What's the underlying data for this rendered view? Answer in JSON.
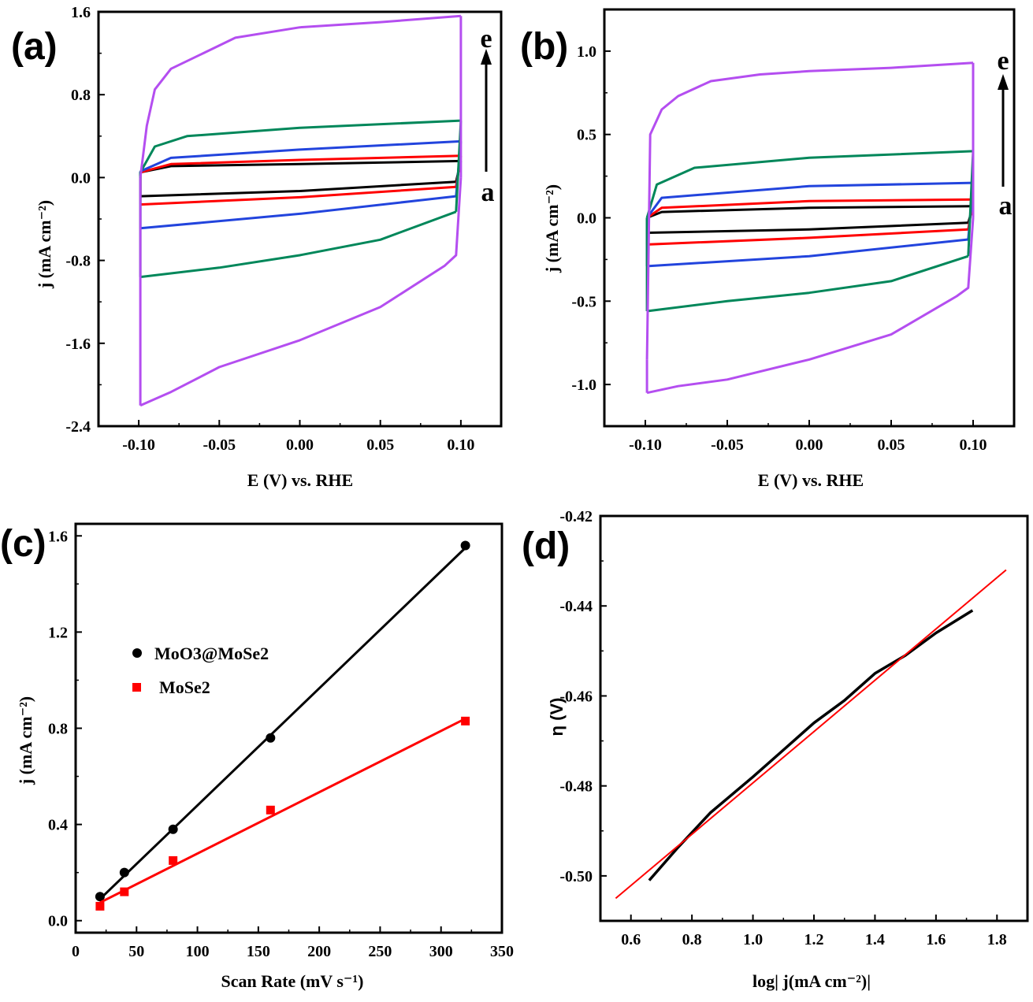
{
  "chart_data": [
    {
      "panel_label": "(a)",
      "type": "line",
      "xlabel": "E (V) vs. RHE",
      "ylabel": "j (mA cm⁻²)",
      "xlim": [
        -0.125,
        0.125
      ],
      "ylim": [
        -2.4,
        1.6
      ],
      "xticks": [
        "-0.10",
        "-0.05",
        "0.00",
        "0.05",
        "0.10"
      ],
      "yticks": [
        "-2.4",
        "-1.6",
        "-0.8",
        "0.0",
        "0.8",
        "1.6"
      ],
      "ytick_values": [
        -2.4,
        -1.6,
        -0.8,
        0.0,
        0.8,
        1.6
      ],
      "xtick_values": [
        -0.1,
        -0.05,
        0.0,
        0.05,
        0.1
      ],
      "annotations": {
        "top": "e",
        "bottom": "a"
      },
      "series": [
        {
          "color": "#000000",
          "upper": [
            [
              -0.099,
              0.05
            ],
            [
              -0.08,
              0.11
            ],
            [
              0.0,
              0.13
            ],
            [
              0.1,
              0.16
            ]
          ],
          "lower": [
            [
              -0.099,
              -0.18
            ],
            [
              0.0,
              -0.13
            ],
            [
              0.097,
              -0.04
            ]
          ]
        },
        {
          "color": "#ff0000",
          "upper": [
            [
              -0.099,
              0.05
            ],
            [
              -0.08,
              0.13
            ],
            [
              0.0,
              0.17
            ],
            [
              0.1,
              0.21
            ]
          ],
          "lower": [
            [
              -0.099,
              -0.26
            ],
            [
              0.0,
              -0.19
            ],
            [
              0.097,
              -0.09
            ]
          ]
        },
        {
          "color": "#2244dd",
          "upper": [
            [
              -0.099,
              0.06
            ],
            [
              -0.08,
              0.19
            ],
            [
              0.0,
              0.27
            ],
            [
              0.1,
              0.35
            ]
          ],
          "lower": [
            [
              -0.099,
              -0.49
            ],
            [
              0.0,
              -0.35
            ],
            [
              0.097,
              -0.18
            ]
          ]
        },
        {
          "color": "#00875a",
          "upper": [
            [
              -0.099,
              0.05
            ],
            [
              -0.09,
              0.3
            ],
            [
              -0.07,
              0.4
            ],
            [
              0.0,
              0.48
            ],
            [
              0.1,
              0.55
            ]
          ],
          "lower": [
            [
              -0.099,
              -0.96
            ],
            [
              -0.05,
              -0.87
            ],
            [
              0.0,
              -0.75
            ],
            [
              0.05,
              -0.6
            ],
            [
              0.097,
              -0.33
            ]
          ]
        },
        {
          "color": "#b44ef0",
          "upper": [
            [
              -0.099,
              0.0
            ],
            [
              -0.095,
              0.5
            ],
            [
              -0.09,
              0.85
            ],
            [
              -0.08,
              1.05
            ],
            [
              -0.06,
              1.2
            ],
            [
              -0.04,
              1.35
            ],
            [
              0.0,
              1.45
            ],
            [
              0.05,
              1.5
            ],
            [
              0.1,
              1.56
            ]
          ],
          "lower": [
            [
              -0.099,
              -2.2
            ],
            [
              -0.08,
              -2.07
            ],
            [
              -0.05,
              -1.83
            ],
            [
              0.0,
              -1.57
            ],
            [
              0.05,
              -1.25
            ],
            [
              0.09,
              -0.85
            ],
            [
              0.097,
              -0.75
            ],
            [
              0.1,
              0.0
            ]
          ]
        }
      ]
    },
    {
      "panel_label": "(b)",
      "type": "line",
      "xlabel": "E (V) vs. RHE",
      "ylabel": "j (mA cm⁻²)",
      "xlim": [
        -0.125,
        0.125
      ],
      "ylim": [
        -1.25,
        1.25
      ],
      "xticks": [
        "-0.10",
        "-0.05",
        "0.00",
        "0.05",
        "0.10"
      ],
      "yticks": [
        "-1.0",
        "-0.5",
        "0.0",
        "0.5",
        "1.0"
      ],
      "ytick_values": [
        -1.0,
        -0.5,
        0.0,
        0.5,
        1.0
      ],
      "xtick_values": [
        -0.1,
        -0.05,
        0.0,
        0.05,
        0.1
      ],
      "annotations": {
        "top": "e",
        "bottom": "a"
      },
      "series": [
        {
          "color": "#000000",
          "upper": [
            [
              -0.099,
              0.0
            ],
            [
              -0.09,
              0.035
            ],
            [
              0.0,
              0.06
            ],
            [
              0.1,
              0.07
            ]
          ],
          "lower": [
            [
              -0.099,
              -0.09
            ],
            [
              0.0,
              -0.07
            ],
            [
              0.097,
              -0.03
            ]
          ]
        },
        {
          "color": "#ff0000",
          "upper": [
            [
              -0.099,
              0.0
            ],
            [
              -0.09,
              0.06
            ],
            [
              0.0,
              0.1
            ],
            [
              0.1,
              0.11
            ]
          ],
          "lower": [
            [
              -0.099,
              -0.16
            ],
            [
              0.0,
              -0.12
            ],
            [
              0.097,
              -0.07
            ]
          ]
        },
        {
          "color": "#2244dd",
          "upper": [
            [
              -0.099,
              0.0
            ],
            [
              -0.09,
              0.12
            ],
            [
              0.0,
              0.19
            ],
            [
              0.1,
              0.21
            ]
          ],
          "lower": [
            [
              -0.099,
              -0.29
            ],
            [
              0.0,
              -0.23
            ],
            [
              0.097,
              -0.13
            ]
          ]
        },
        {
          "color": "#00875a",
          "upper": [
            [
              -0.099,
              0.0
            ],
            [
              -0.093,
              0.2
            ],
            [
              -0.07,
              0.3
            ],
            [
              0.0,
              0.36
            ],
            [
              0.1,
              0.4
            ]
          ],
          "lower": [
            [
              -0.099,
              -0.56
            ],
            [
              -0.05,
              -0.5
            ],
            [
              0.0,
              -0.45
            ],
            [
              0.05,
              -0.38
            ],
            [
              0.097,
              -0.23
            ]
          ]
        },
        {
          "color": "#b44ef0",
          "upper": [
            [
              -0.099,
              -0.85
            ],
            [
              -0.097,
              0.5
            ],
            [
              -0.09,
              0.65
            ],
            [
              -0.08,
              0.73
            ],
            [
              -0.06,
              0.82
            ],
            [
              -0.03,
              0.86
            ],
            [
              0.0,
              0.88
            ],
            [
              0.05,
              0.9
            ],
            [
              0.1,
              0.93
            ]
          ],
          "lower": [
            [
              -0.099,
              -1.05
            ],
            [
              -0.08,
              -1.01
            ],
            [
              -0.05,
              -0.97
            ],
            [
              0.0,
              -0.85
            ],
            [
              0.05,
              -0.7
            ],
            [
              0.09,
              -0.47
            ],
            [
              0.097,
              -0.42
            ],
            [
              0.1,
              0.0
            ]
          ]
        }
      ]
    },
    {
      "panel_label": "(c)",
      "type": "scatter",
      "xlabel": "Scan Rate (mV s⁻¹)",
      "ylabel": "j (mA cm⁻²)",
      "xlim": [
        0,
        350
      ],
      "ylim": [
        -0.05,
        1.65
      ],
      "xticks": [
        "0",
        "50",
        "100",
        "150",
        "200",
        "250",
        "300",
        "350"
      ],
      "xtick_values": [
        0,
        50,
        100,
        150,
        200,
        250,
        300,
        350
      ],
      "yticks": [
        "0.0",
        "0.4",
        "0.8",
        "1.2",
        "1.6"
      ],
      "ytick_values": [
        0.0,
        0.4,
        0.8,
        1.2,
        1.6
      ],
      "series": [
        {
          "name": "MoO3@MoSe2",
          "color": "#000000",
          "marker": "circle",
          "x": [
            20,
            40,
            80,
            160,
            320
          ],
          "y": [
            0.1,
            0.2,
            0.38,
            0.76,
            1.56
          ],
          "fit": [
            [
              20,
              0.09
            ],
            [
              320,
              1.55
            ]
          ]
        },
        {
          "name": "MoSe2",
          "color": "#ff0000",
          "marker": "square",
          "x": [
            20,
            40,
            80,
            160,
            320
          ],
          "y": [
            0.06,
            0.12,
            0.25,
            0.46,
            0.83
          ],
          "fit": [
            [
              20,
              0.075
            ],
            [
              320,
              0.84
            ]
          ]
        }
      ]
    },
    {
      "panel_label": "(d)",
      "type": "line",
      "xlabel": "log| j(mA cm⁻²)|",
      "ylabel": "η (V)",
      "xlim": [
        0.5,
        1.9
      ],
      "ylim": [
        -0.51,
        -0.42
      ],
      "xticks": [
        "0.6",
        "0.8",
        "1.0",
        "1.2",
        "1.4",
        "1.6",
        "1.8"
      ],
      "xtick_values": [
        0.6,
        0.8,
        1.0,
        1.2,
        1.4,
        1.6,
        1.8
      ],
      "yticks": [
        "-0.50",
        "-0.48",
        "-0.46",
        "-0.44",
        "-0.42"
      ],
      "ytick_values": [
        -0.5,
        -0.48,
        -0.46,
        -0.44,
        -0.42
      ],
      "series": [
        {
          "color": "#000000",
          "points": [
            [
              0.66,
              -0.501
            ],
            [
              0.75,
              -0.494
            ],
            [
              0.86,
              -0.486
            ],
            [
              1.0,
              -0.478
            ],
            [
              1.1,
              -0.472
            ],
            [
              1.2,
              -0.466
            ],
            [
              1.3,
              -0.461
            ],
            [
              1.4,
              -0.455
            ],
            [
              1.5,
              -0.451
            ],
            [
              1.6,
              -0.446
            ],
            [
              1.72,
              -0.441
            ]
          ]
        },
        {
          "color": "#ff0000",
          "points": [
            [
              0.55,
              -0.505
            ],
            [
              1.83,
              -0.432
            ]
          ]
        }
      ]
    }
  ]
}
